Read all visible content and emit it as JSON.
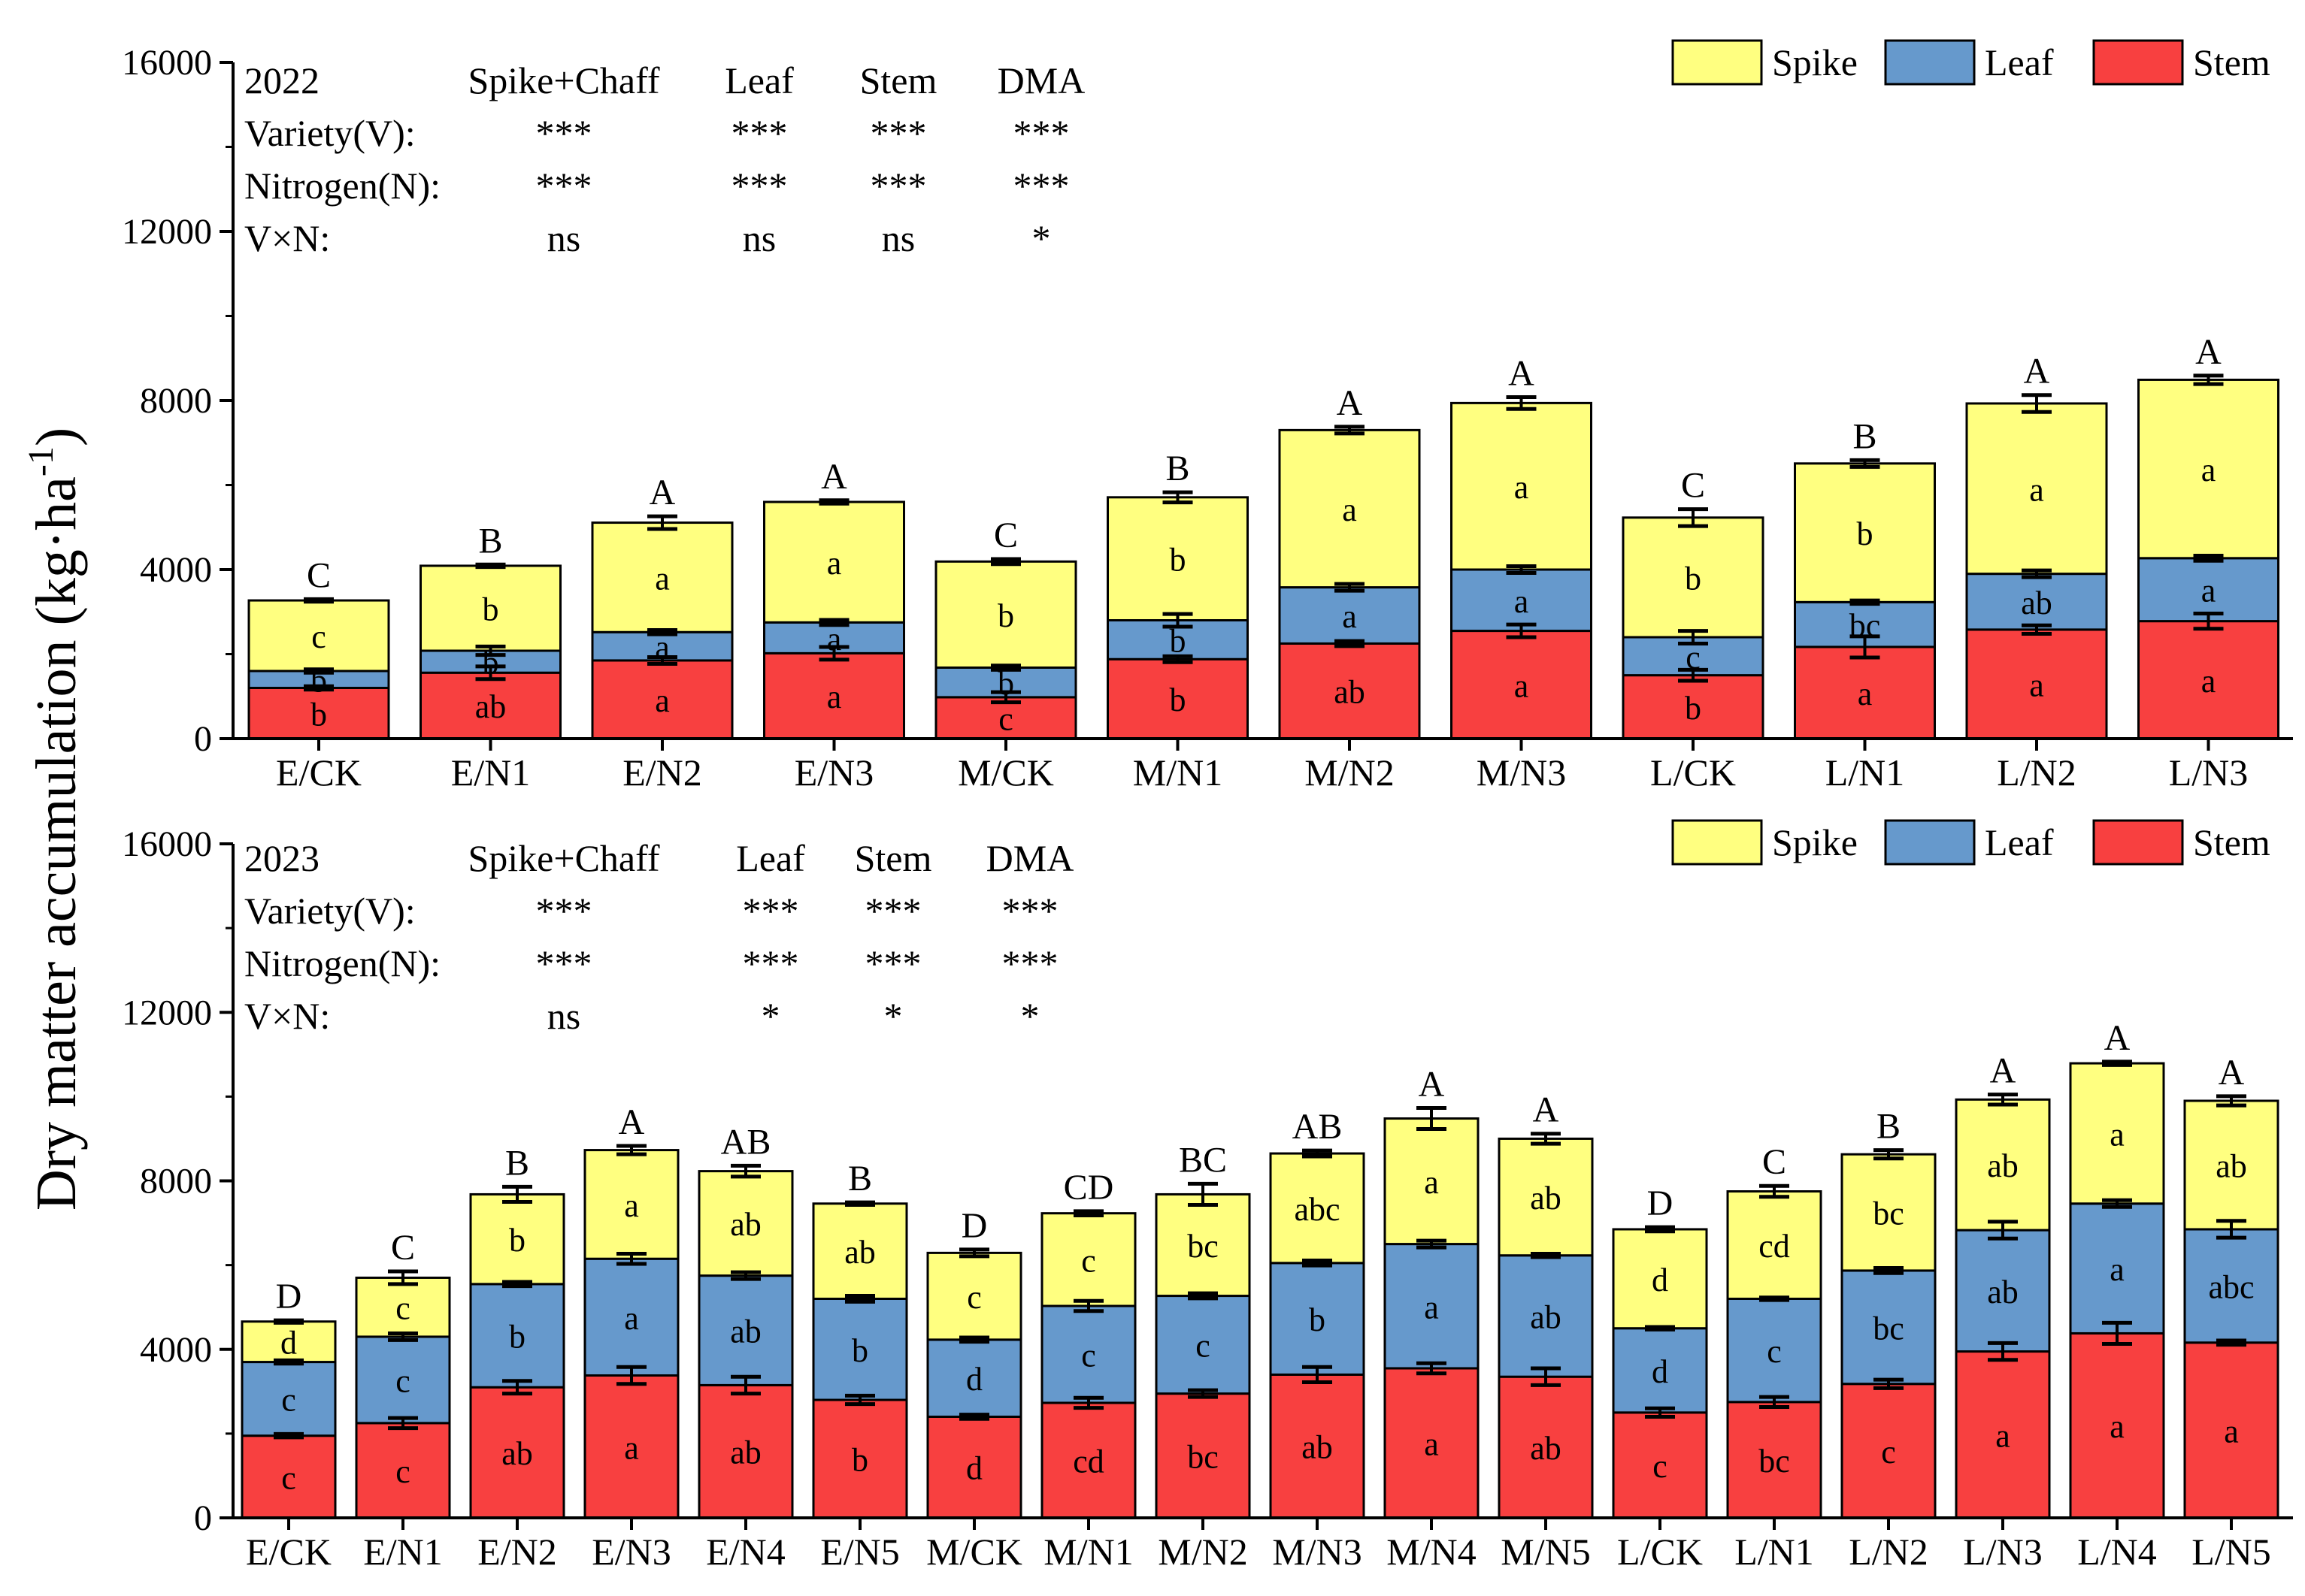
{
  "y_axis_title": "Dry matter accumulation (kg·ha",
  "y_axis_sup": "-1",
  "y_axis_close": ")",
  "legend": [
    {
      "key": "spike",
      "label": "Spike",
      "color": "#FFFF80"
    },
    {
      "key": "leaf",
      "label": "Leaf",
      "color": "#6699CC"
    },
    {
      "key": "stem",
      "label": "Stem",
      "color": "#F84040"
    }
  ],
  "chart_data": [
    {
      "type": "bar",
      "stacked": true,
      "year": "2022",
      "ylim": [
        0,
        16000
      ],
      "yticks": [
        0,
        4000,
        8000,
        12000,
        16000
      ],
      "categories": [
        "E/CK",
        "E/N1",
        "E/N2",
        "E/N3",
        "M/CK",
        "M/N1",
        "M/N2",
        "M/N3",
        "L/CK",
        "L/N1",
        "L/N2",
        "L/N3"
      ],
      "stem_top": [
        1200,
        1560,
        1850,
        2020,
        980,
        1880,
        2250,
        2550,
        1500,
        2170,
        2580,
        2780
      ],
      "leaf_top": [
        1600,
        2080,
        2520,
        2750,
        1680,
        2800,
        3580,
        4000,
        2400,
        3230,
        3900,
        4270
      ],
      "total": [
        3270,
        4090,
        5110,
        5600,
        4190,
        5710,
        7300,
        7940,
        5230,
        6510,
        7930,
        8490
      ],
      "err_stem": [
        40,
        150,
        80,
        150,
        120,
        70,
        60,
        150,
        130,
        250,
        100,
        180
      ],
      "err_leaf": [
        40,
        100,
        50,
        60,
        50,
        150,
        80,
        80,
        150,
        40,
        80,
        60
      ],
      "err_total": [
        30,
        30,
        150,
        40,
        60,
        120,
        80,
        140,
        200,
        80,
        200,
        100
      ],
      "sig_total": [
        "C",
        "B",
        "A",
        "A",
        "C",
        "B",
        "A",
        "A",
        "C",
        "B",
        "A",
        "A"
      ],
      "sig_spike": [
        "c",
        "b",
        "a",
        "a",
        "b",
        "b",
        "a",
        "a",
        "b",
        "b",
        "a",
        "a"
      ],
      "sig_leaf": [
        "b",
        "b",
        "a",
        "a",
        "b",
        "b",
        "a",
        "a",
        "c",
        "bc",
        "ab",
        "a"
      ],
      "sig_stem": [
        "b",
        "ab",
        "a",
        "a",
        "c",
        "b",
        "ab",
        "a",
        "b",
        "a",
        "a",
        "a"
      ],
      "stats_table": {
        "headers": [
          "2022",
          "Spike+Chaff",
          "Leaf",
          "Stem",
          "DMA"
        ],
        "rows": [
          [
            "Variety(V):",
            "***",
            "***",
            "***",
            "***"
          ],
          [
            "Nitrogen(N):",
            "***",
            "***",
            "***",
            "***"
          ],
          [
            "V×N:",
            "ns",
            "ns",
            "ns",
            "*"
          ]
        ]
      }
    },
    {
      "type": "bar",
      "stacked": true,
      "year": "2023",
      "ylim": [
        0,
        16000
      ],
      "yticks": [
        0,
        4000,
        8000,
        12000,
        16000
      ],
      "categories": [
        "E/CK",
        "E/N1",
        "E/N2",
        "E/N3",
        "E/N4",
        "E/N5",
        "M/CK",
        "M/N1",
        "M/N2",
        "M/N3",
        "M/N4",
        "M/N5",
        "L/CK",
        "L/N1",
        "L/N2",
        "L/N3",
        "L/N4",
        "L/N5"
      ],
      "stem_top": [
        1950,
        2250,
        3100,
        3380,
        3150,
        2800,
        2400,
        2730,
        2950,
        3400,
        3550,
        3350,
        2500,
        2750,
        3180,
        3950,
        4380,
        4160
      ],
      "leaf_top": [
        3700,
        4300,
        5550,
        6150,
        5750,
        5200,
        4230,
        5030,
        5270,
        6050,
        6500,
        6230,
        4500,
        5200,
        5870,
        6830,
        7460,
        6850
      ],
      "total": [
        4660,
        5700,
        7680,
        8730,
        8230,
        7460,
        6290,
        7230,
        7680,
        8650,
        9480,
        9000,
        6850,
        7750,
        8630,
        9930,
        10790,
        9900
      ],
      "err_stem": [
        40,
        120,
        150,
        200,
        200,
        100,
        50,
        120,
        80,
        180,
        120,
        200,
        100,
        120,
        100,
        200,
        250,
        50
      ],
      "err_leaf": [
        40,
        80,
        50,
        120,
        80,
        70,
        50,
        120,
        60,
        60,
        80,
        40,
        30,
        30,
        60,
        200,
        80,
        200
      ],
      "err_total": [
        30,
        150,
        180,
        100,
        130,
        30,
        80,
        50,
        250,
        70,
        250,
        120,
        50,
        130,
        100,
        120,
        40,
        110
      ],
      "sig_total": [
        "D",
        "C",
        "B",
        "A",
        "AB",
        "B",
        "D",
        "CD",
        "BC",
        "AB",
        "A",
        "A",
        "D",
        "C",
        "B",
        "A",
        "A",
        "A"
      ],
      "sig_spike": [
        "d",
        "c",
        "b",
        "a",
        "ab",
        "ab",
        "c",
        "c",
        "bc",
        "abc",
        "a",
        "ab",
        "d",
        "cd",
        "bc",
        "ab",
        "a",
        "ab"
      ],
      "sig_leaf": [
        "c",
        "c",
        "b",
        "a",
        "ab",
        "b",
        "d",
        "c",
        "c",
        "b",
        "a",
        "ab",
        "d",
        "c",
        "bc",
        "ab",
        "a",
        "abc"
      ],
      "sig_stem": [
        "c",
        "c",
        "ab",
        "a",
        "ab",
        "b",
        "d",
        "cd",
        "bc",
        "ab",
        "a",
        "ab",
        "c",
        "bc",
        "c",
        "a",
        "a",
        "a"
      ],
      "stats_table": {
        "headers": [
          "2023",
          "Spike+Chaff",
          "Leaf",
          "Stem",
          "DMA"
        ],
        "rows": [
          [
            "Variety(V):",
            "***",
            "***",
            "***",
            "***"
          ],
          [
            "Nitrogen(N):",
            "***",
            "***",
            "***",
            "***"
          ],
          [
            "V×N:",
            "ns",
            "*",
            "*",
            "*"
          ]
        ]
      }
    }
  ]
}
